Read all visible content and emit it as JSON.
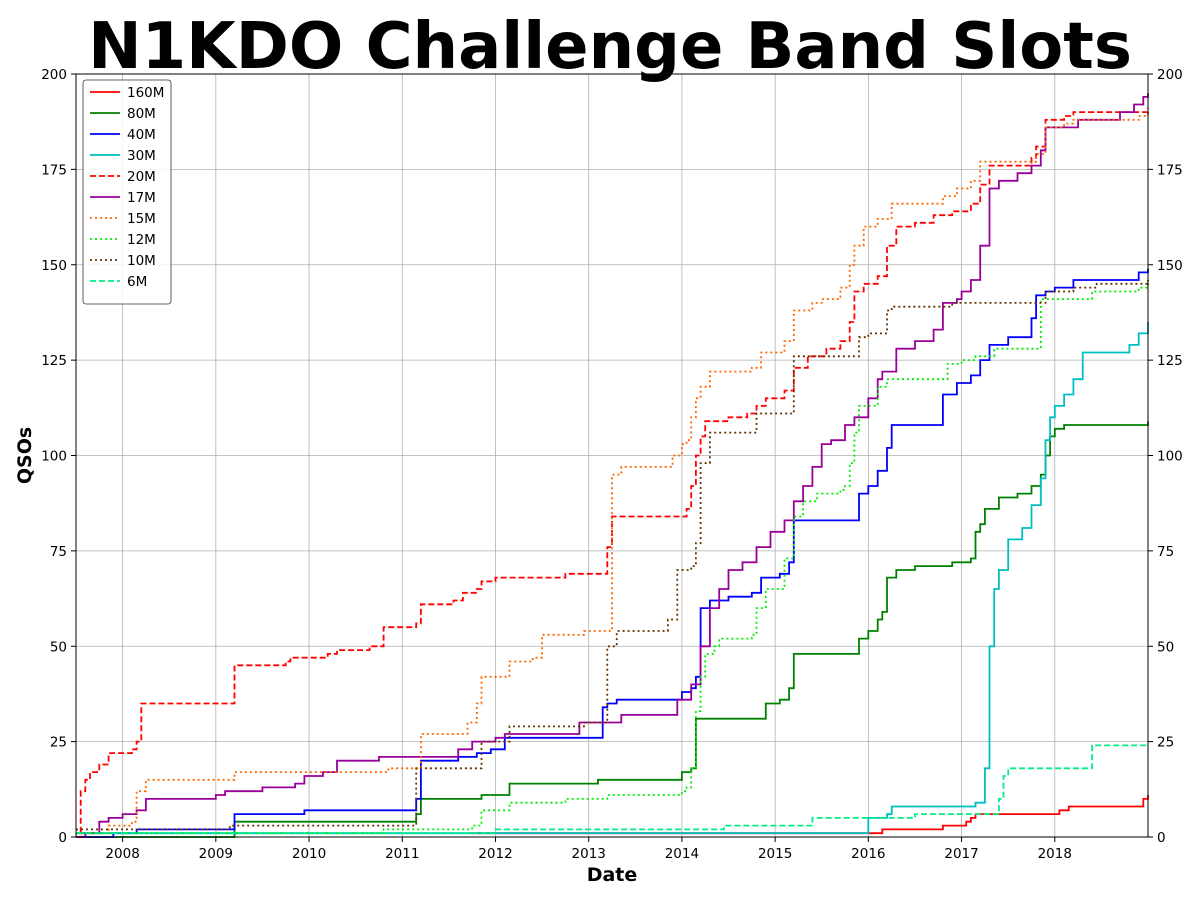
{
  "chart_data": {
    "type": "line",
    "title": "N1KDO Challenge Band Slots",
    "xlabel": "Date",
    "ylabel": "QSOs",
    "xlim": [
      2007.5,
      2019.0
    ],
    "ylim": [
      0,
      200
    ],
    "x_ticks": [
      "2008",
      "2009",
      "2010",
      "2011",
      "2012",
      "2013",
      "2014",
      "2015",
      "2016",
      "2017",
      "2018"
    ],
    "y_ticks": [
      "0",
      "25",
      "50",
      "75",
      "100",
      "125",
      "150",
      "175",
      "200"
    ],
    "grid": true,
    "legend_position": "top-left",
    "series": [
      {
        "name": "160M",
        "color": "#ff0000",
        "dash": "solid",
        "x": [
          2011.75,
          2012.25,
          2015.95,
          2016.15,
          2016.8,
          2017.05,
          2017.1,
          2017.15,
          2017.2,
          2018.0,
          2018.05,
          2018.15,
          2018.9,
          2018.95,
          2019.0
        ],
        "y": [
          1,
          1,
          1,
          2,
          3,
          4,
          5,
          6,
          6,
          6,
          7,
          8,
          8,
          10,
          11
        ]
      },
      {
        "name": "80M",
        "color": "#008000",
        "dash": "solid",
        "x": [
          2007.5,
          2009.15,
          2009.2,
          2011.1,
          2011.15,
          2011.2,
          2011.8,
          2011.85,
          2012.1,
          2012.15,
          2013.05,
          2013.1,
          2013.9,
          2014.0,
          2014.1,
          2014.15,
          2014.8,
          2014.9,
          2015.05,
          2015.15,
          2015.2,
          2015.9,
          2016.0,
          2016.1,
          2016.15,
          2016.2,
          2016.3,
          2016.5,
          2016.9,
          2017.1,
          2017.15,
          2017.2,
          2017.25,
          2017.4,
          2017.6,
          2017.75,
          2017.85,
          2017.9,
          2017.95,
          2018.0,
          2018.1,
          2018.9,
          2019.0
        ],
        "y": [
          0,
          0,
          4,
          4,
          6,
          10,
          10,
          11,
          11,
          14,
          14,
          15,
          15,
          17,
          18,
          31,
          31,
          35,
          36,
          39,
          48,
          52,
          54,
          57,
          59,
          68,
          70,
          71,
          72,
          73,
          80,
          82,
          86,
          89,
          90,
          92,
          95,
          100,
          105,
          107,
          108,
          108,
          109
        ]
      },
      {
        "name": "40M",
        "color": "#0000ff",
        "dash": "solid",
        "x": [
          2007.5,
          2007.9,
          2008.15,
          2009.15,
          2009.2,
          2009.95,
          2011.1,
          2011.15,
          2011.2,
          2011.6,
          2011.8,
          2011.95,
          2012.1,
          2012.15,
          2013.15,
          2013.2,
          2013.3,
          2013.9,
          2014.0,
          2014.1,
          2014.15,
          2014.2,
          2014.3,
          2014.5,
          2014.75,
          2014.85,
          2015.05,
          2015.15,
          2015.2,
          2015.85,
          2015.9,
          2016.0,
          2016.1,
          2016.2,
          2016.25,
          2016.6,
          2016.8,
          2016.95,
          2017.1,
          2017.2,
          2017.3,
          2017.5,
          2017.75,
          2017.8,
          2017.9,
          2018.0,
          2018.2,
          2018.8,
          2018.9,
          2019.0
        ],
        "y": [
          0,
          1,
          2,
          2,
          6,
          7,
          7,
          10,
          20,
          21,
          22,
          23,
          26,
          26,
          34,
          35,
          36,
          36,
          38,
          39,
          42,
          60,
          62,
          63,
          64,
          68,
          69,
          72,
          83,
          83,
          90,
          92,
          96,
          102,
          108,
          108,
          116,
          119,
          121,
          125,
          129,
          131,
          136,
          142,
          143,
          144,
          146,
          146,
          148,
          149
        ]
      },
      {
        "name": "30M",
        "color": "#00bfbf",
        "dash": "solid",
        "x": [
          2007.5,
          2015.9,
          2016.0,
          2016.2,
          2016.25,
          2016.95,
          2017.15,
          2017.25,
          2017.3,
          2017.35,
          2017.4,
          2017.5,
          2017.65,
          2017.75,
          2017.85,
          2017.9,
          2017.95,
          2018.0,
          2018.1,
          2018.2,
          2018.3,
          2018.7,
          2018.8,
          2018.9,
          2019.0
        ],
        "y": [
          1,
          1,
          5,
          6,
          8,
          8,
          9,
          18,
          50,
          65,
          70,
          78,
          81,
          87,
          94,
          104,
          110,
          113,
          116,
          120,
          127,
          127,
          129,
          132,
          135
        ]
      },
      {
        "name": "20M",
        "color": "#ff0000",
        "dash": "dashed",
        "x": [
          2007.5,
          2007.55,
          2007.6,
          2007.65,
          2007.75,
          2007.85,
          2008.1,
          2008.15,
          2008.2,
          2009.15,
          2009.2,
          2009.75,
          2009.8,
          2010.2,
          2010.3,
          2010.65,
          2010.8,
          2011.15,
          2011.2,
          2011.55,
          2011.65,
          2011.8,
          2011.85,
          2012.0,
          2012.6,
          2012.75,
          2013.15,
          2013.2,
          2013.25,
          2013.9,
          2014.05,
          2014.1,
          2014.15,
          2014.2,
          2014.25,
          2014.5,
          2014.7,
          2014.8,
          2014.9,
          2015.1,
          2015.2,
          2015.35,
          2015.55,
          2015.7,
          2015.8,
          2015.85,
          2015.95,
          2016.1,
          2016.2,
          2016.3,
          2016.5,
          2016.7,
          2016.9,
          2017.1,
          2017.2,
          2017.3,
          2017.65,
          2017.75,
          2017.8,
          2017.9,
          2018.1,
          2018.2,
          2018.9,
          2019.0
        ],
        "y": [
          0,
          12,
          15,
          17,
          19,
          22,
          23,
          25,
          35,
          35,
          45,
          46,
          47,
          48,
          49,
          50,
          55,
          56,
          61,
          62,
          64,
          65,
          67,
          68,
          68,
          69,
          69,
          76,
          84,
          84,
          86,
          92,
          100,
          105,
          109,
          110,
          111,
          113,
          115,
          117,
          123,
          126,
          128,
          130,
          135,
          143,
          145,
          147,
          155,
          160,
          161,
          163,
          164,
          166,
          171,
          176,
          176,
          178,
          181,
          188,
          189,
          190,
          190,
          191
        ]
      },
      {
        "name": "17M",
        "color": "#990099",
        "dash": "solid",
        "x": [
          2007.5,
          2007.6,
          2007.75,
          2007.85,
          2008.0,
          2008.15,
          2008.25,
          2008.8,
          2009.0,
          2009.1,
          2009.5,
          2009.85,
          2009.95,
          2010.15,
          2010.3,
          2010.75,
          2011.5,
          2011.6,
          2011.75,
          2011.95,
          2012.0,
          2012.1,
          2012.15,
          2012.8,
          2012.9,
          2013.15,
          2013.35,
          2013.85,
          2013.95,
          2014.1,
          2014.2,
          2014.3,
          2014.4,
          2014.5,
          2014.65,
          2014.8,
          2014.95,
          2015.1,
          2015.2,
          2015.3,
          2015.4,
          2015.5,
          2015.6,
          2015.75,
          2015.85,
          2016.0,
          2016.1,
          2016.15,
          2016.3,
          2016.5,
          2016.7,
          2016.8,
          2016.95,
          2017.0,
          2017.1,
          2017.2,
          2017.3,
          2017.4,
          2017.6,
          2017.75,
          2017.85,
          2017.9,
          2018.1,
          2018.25,
          2018.7,
          2018.85,
          2018.95,
          2019.0
        ],
        "y": [
          0,
          1,
          4,
          5,
          6,
          7,
          10,
          10,
          11,
          12,
          13,
          14,
          16,
          17,
          20,
          21,
          21,
          23,
          25,
          25,
          26,
          27,
          27,
          27,
          30,
          30,
          32,
          32,
          36,
          40,
          50,
          60,
          65,
          70,
          72,
          76,
          80,
          83,
          88,
          92,
          97,
          103,
          104,
          108,
          110,
          115,
          120,
          122,
          128,
          130,
          133,
          140,
          141,
          143,
          146,
          155,
          170,
          172,
          174,
          176,
          180,
          186,
          186,
          188,
          190,
          192,
          194,
          195
        ]
      },
      {
        "name": "15M",
        "color": "#ff6600",
        "dash": "dotted",
        "x": [
          2007.5,
          2007.85,
          2008.1,
          2008.15,
          2008.25,
          2009.15,
          2009.2,
          2010.7,
          2010.85,
          2011.15,
          2011.2,
          2011.6,
          2011.7,
          2011.8,
          2011.85,
          2012.0,
          2012.15,
          2012.4,
          2012.5,
          2012.85,
          2012.95,
          2013.2,
          2013.25,
          2013.35,
          2013.8,
          2013.9,
          2014.0,
          2014.05,
          2014.1,
          2014.15,
          2014.2,
          2014.3,
          2014.4,
          2014.75,
          2014.85,
          2015.1,
          2015.2,
          2015.4,
          2015.5,
          2015.7,
          2015.8,
          2015.85,
          2015.95,
          2016.1,
          2016.25,
          2016.55,
          2016.8,
          2016.95,
          2017.1,
          2017.2,
          2017.6,
          2017.8,
          2017.9,
          2018.1,
          2018.2,
          2018.5,
          2018.9,
          2019.0
        ],
        "y": [
          1,
          3,
          4,
          12,
          15,
          15,
          17,
          17,
          18,
          18,
          27,
          27,
          30,
          35,
          42,
          42,
          46,
          47,
          53,
          53,
          54,
          54,
          95,
          97,
          97,
          100,
          103,
          104,
          110,
          115,
          118,
          122,
          122,
          123,
          127,
          130,
          138,
          140,
          141,
          144,
          150,
          155,
          160,
          162,
          166,
          166,
          168,
          170,
          172,
          177,
          177,
          179,
          186,
          187,
          188,
          188,
          189,
          190
        ]
      },
      {
        "name": "12M",
        "color": "#00ee00",
        "dash": "dotted",
        "x": [
          2007.5,
          2010.8,
          2011.6,
          2011.75,
          2011.85,
          2012.05,
          2012.15,
          2012.6,
          2012.75,
          2013.05,
          2013.2,
          2013.9,
          2014.0,
          2014.05,
          2014.1,
          2014.15,
          2014.2,
          2014.25,
          2014.35,
          2014.4,
          2014.75,
          2014.8,
          2014.9,
          2015.1,
          2015.2,
          2015.3,
          2015.45,
          2015.7,
          2015.75,
          2015.8,
          2015.85,
          2015.9,
          2016.1,
          2016.2,
          2016.75,
          2016.85,
          2017.0,
          2017.15,
          2017.35,
          2017.7,
          2017.85,
          2018.2,
          2018.4,
          2018.8,
          2018.9,
          2019.0
        ],
        "y": [
          1,
          2,
          2,
          3,
          7,
          7,
          9,
          9,
          10,
          10,
          11,
          11,
          12,
          13,
          18,
          33,
          42,
          48,
          50,
          52,
          53,
          60,
          65,
          73,
          84,
          88,
          90,
          91,
          92,
          98,
          106,
          113,
          118,
          120,
          120,
          124,
          125,
          126,
          128,
          128,
          141,
          141,
          143,
          143,
          144,
          146
        ]
      },
      {
        "name": "10M",
        "color": "#663300",
        "dash": "dotted",
        "x": [
          2007.5,
          2009.15,
          2011.15,
          2011.85,
          2012.15,
          2012.8,
          2012.95,
          2013.15,
          2013.2,
          2013.3,
          2013.75,
          2013.85,
          2013.95,
          2014.1,
          2014.15,
          2014.2,
          2014.3,
          2014.75,
          2014.8,
          2015.1,
          2015.2,
          2015.85,
          2015.9,
          2016.0,
          2016.1,
          2016.2,
          2016.25,
          2016.7,
          2016.9,
          2017.0,
          2017.3,
          2017.8,
          2017.9,
          2018.2,
          2018.45,
          2018.9,
          2019.0
        ],
        "y": [
          2,
          3,
          18,
          25,
          29,
          29,
          30,
          30,
          50,
          54,
          54,
          57,
          70,
          71,
          77,
          98,
          106,
          106,
          111,
          111,
          126,
          126,
          131,
          132,
          132,
          138,
          139,
          139,
          140,
          140,
          140,
          140,
          143,
          144,
          145,
          145,
          146
        ]
      },
      {
        "name": "6M",
        "color": "#00ee88",
        "dash": "dashed",
        "x": [
          2007.5,
          2012.0,
          2014.45,
          2015.4,
          2015.95,
          2016.5,
          2017.1,
          2017.4,
          2017.45,
          2017.5,
          2018.35,
          2018.4,
          2019.0
        ],
        "y": [
          1,
          2,
          3,
          5,
          5,
          6,
          6,
          10,
          16,
          18,
          18,
          24,
          24
        ]
      }
    ]
  }
}
